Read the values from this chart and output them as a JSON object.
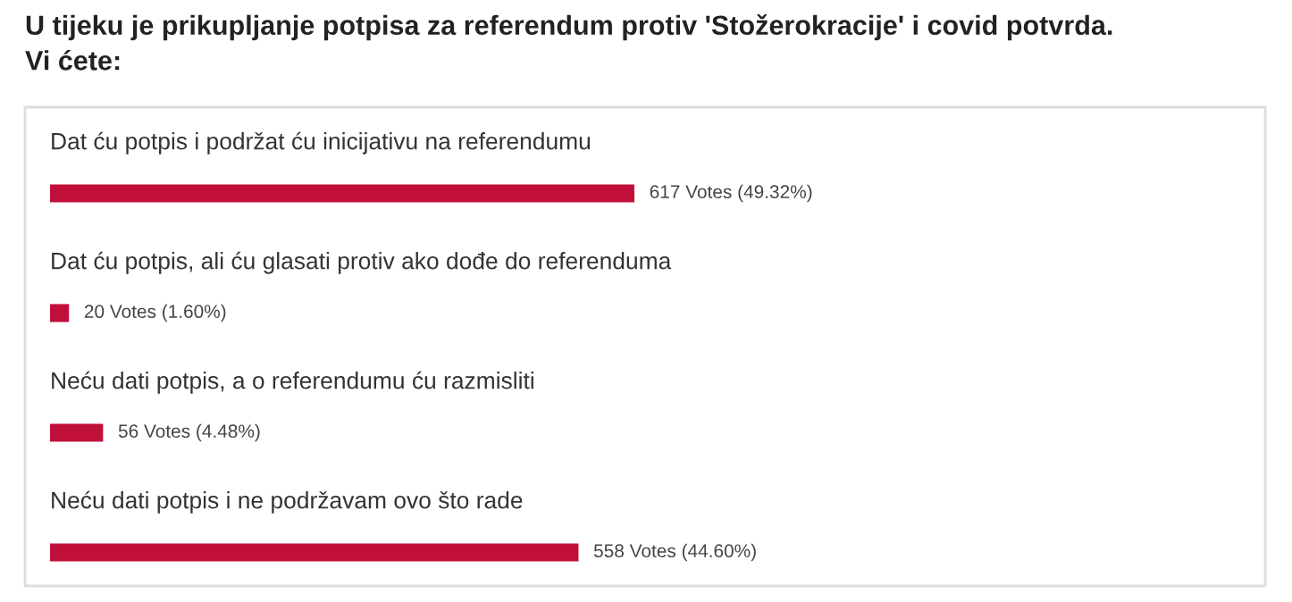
{
  "chart_data": {
    "type": "bar",
    "orientation": "horizontal",
    "title": "U tijeku je prikupljanje potpisa za referendum protiv 'Stožerokracije' i covid potvrda.\nVi ćete:",
    "categories": [
      "Dat ću potpis i podržat ću inicijativu na referendumu",
      "Dat ću potpis, ali ću glasati protiv ako dođe do referenduma",
      "Neću dati potpis, a o referendumu ću razmisliti",
      "Neću dati potpis i ne podržavam ovo što rade"
    ],
    "values": [
      617,
      20,
      56,
      558
    ],
    "value_labels": [
      "617 Votes (49.32%)",
      "20 Votes (1.60%)",
      "56 Votes (4.48%)",
      "558 Votes (44.60%)"
    ],
    "color": "#c0103a"
  }
}
